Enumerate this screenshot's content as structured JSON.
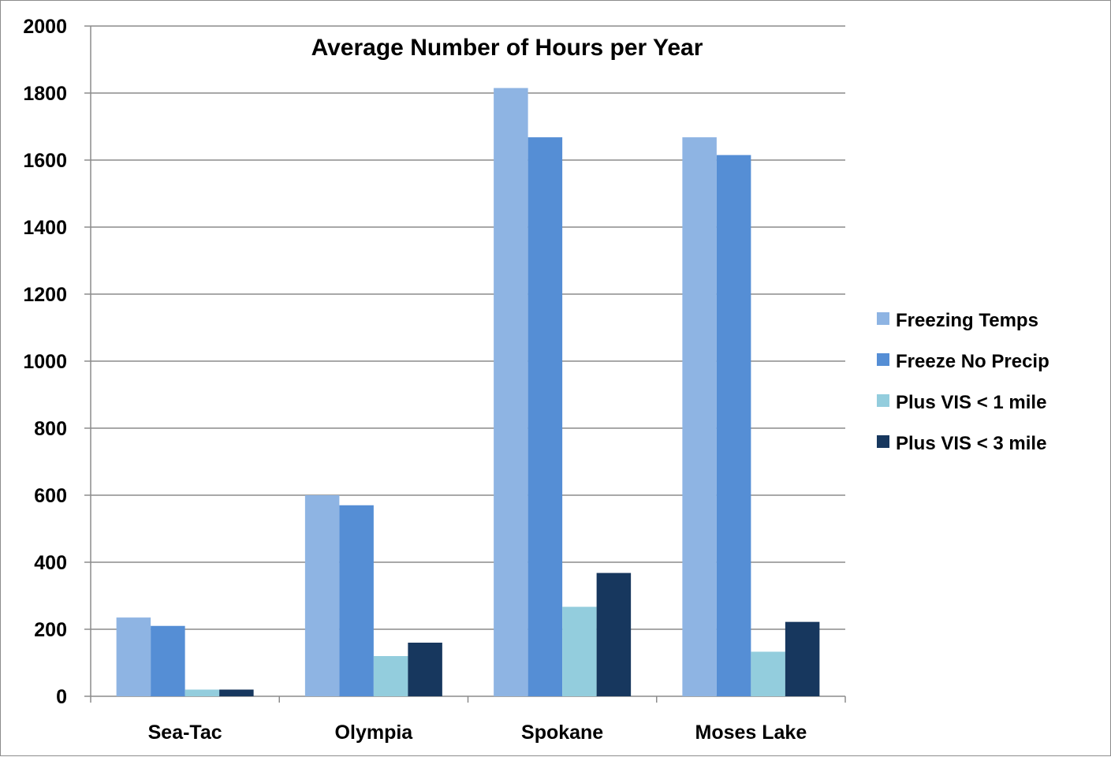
{
  "chart_data": {
    "type": "bar",
    "title": "Average Number of Hours per Year",
    "categories": [
      "Sea-Tac",
      "Olympia",
      "Spokane",
      "Moses Lake"
    ],
    "series": [
      {
        "name": "Freezing Temps",
        "color": "#8EB4E3",
        "values": [
          235,
          600,
          1815,
          1668
        ]
      },
      {
        "name": "Freeze No Precip",
        "color": "#558ED5",
        "values": [
          210,
          570,
          1668,
          1615
        ]
      },
      {
        "name": "Plus VIS < 1 mile",
        "color": "#93CDDD",
        "values": [
          20,
          120,
          267,
          133
        ]
      },
      {
        "name": "Plus VIS < 3 mile",
        "color": "#17375E",
        "values": [
          20,
          160,
          368,
          222
        ]
      }
    ],
    "ylim": [
      0,
      2000
    ],
    "yticks": [
      "0",
      "200",
      "400",
      "600",
      "800",
      "1000",
      "1200",
      "1400",
      "1600",
      "1800",
      "2000"
    ],
    "xlabel": "",
    "ylabel": "",
    "grid": true,
    "legend_position": "right"
  }
}
